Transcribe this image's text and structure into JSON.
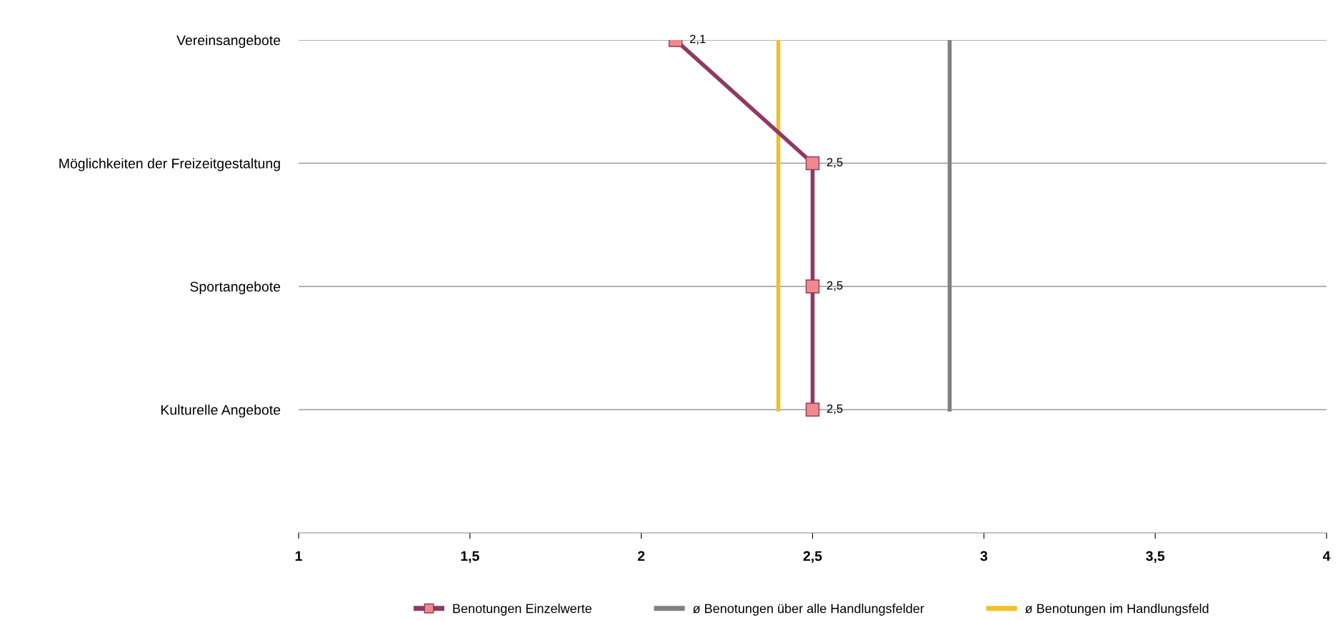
{
  "chart_data": {
    "type": "line",
    "orientation": "horizontal",
    "categories": [
      "Vereinsangebote",
      "Möglichkeiten der Freizeitgestaltung",
      "Sportangebote",
      "Kulturelle Angebote"
    ],
    "series": [
      {
        "name": "Benotungen Einzelwerte",
        "color": "#8e3a63",
        "values": [
          2.1,
          2.5,
          2.5,
          2.5
        ],
        "value_labels": [
          "2,1",
          "2,5",
          "2,5",
          "2,5"
        ]
      }
    ],
    "xlim": [
      1,
      4
    ],
    "xticks": [
      1,
      {
        "value": 1.5,
        "label": "1,5"
      },
      2,
      {
        "value": 2.5,
        "label": "2,5"
      },
      3,
      {
        "value": 3.5,
        "label": "3,5"
      },
      4
    ],
    "ref_lines": [
      {
        "axis": "x",
        "value": 2.9,
        "label": "ø Benotungen über alle Handlungsfelder",
        "color": "#808080"
      },
      {
        "axis": "x",
        "value": 2.4,
        "label": "ø Benotungen im Handlungsfeld",
        "color": "#f0c030"
      }
    ],
    "marker": "square",
    "grid": "y",
    "legend": "bottom"
  }
}
